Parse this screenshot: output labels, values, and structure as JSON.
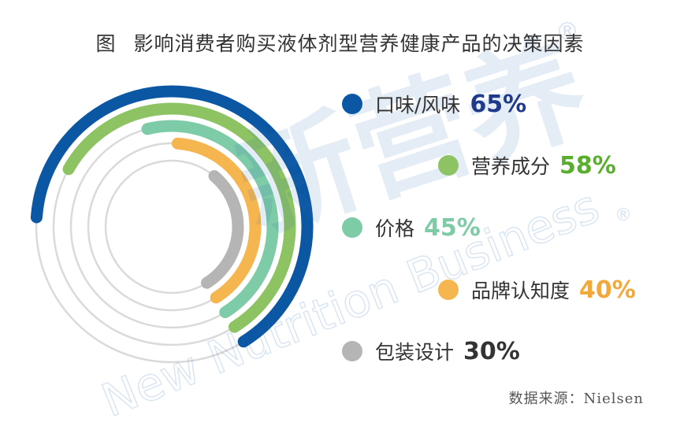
{
  "title": {
    "figure_label": "图",
    "text": "影响消费者购买液体剂型营养健康产品的决策因素"
  },
  "source": "数据来源：Nielsen",
  "watermark": {
    "logo_text": "新营养",
    "english": "New Nutrition Business",
    "registered": "®"
  },
  "chart_data": {
    "type": "radial-bar",
    "title": "影响消费者购买液体剂型营养健康产品的决策因素",
    "unit": "%",
    "categories": [
      "口味/风味",
      "营养成分",
      "价格",
      "品牌认知度",
      "包装设计"
    ],
    "values": [
      65,
      58,
      45,
      40,
      30
    ],
    "value_labels": [
      "65%",
      "58%",
      "45%",
      "40%",
      "30%"
    ],
    "colors": [
      "#0B57A4",
      "#8DC363",
      "#7ECBA7",
      "#F5B650",
      "#B5B5B5"
    ],
    "value_text_colors": [
      "#1F3A8A",
      "#5AAE2E",
      "#7ECBA7",
      "#F2A93B",
      "#333333"
    ],
    "track_color": "#DADADA"
  }
}
